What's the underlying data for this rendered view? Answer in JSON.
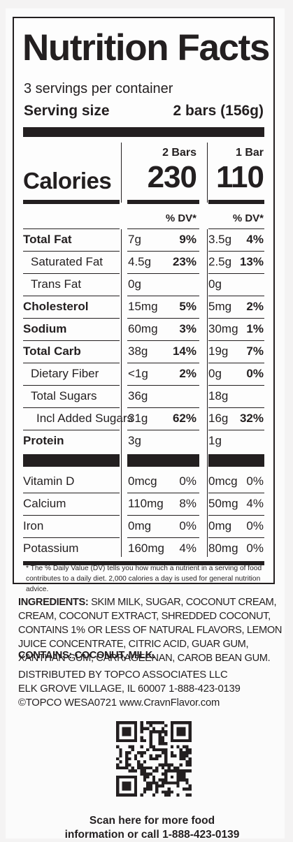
{
  "label": {
    "title": "Nutrition Facts",
    "servings_per_container": "3 servings per container",
    "serving_size_label": "Serving size",
    "serving_size_value": "2 bars (156g)",
    "columns": [
      {
        "header": "2 Bars",
        "calories": "230"
      },
      {
        "header": "1 Bar",
        "calories": "110"
      }
    ],
    "calories_label": "Calories",
    "dv_header": "% DV*",
    "nutrients": [
      {
        "name": "Total Fat",
        "bold": true,
        "indent": 0,
        "c1_amt": "7g",
        "c1_pct": "9%",
        "c2_amt": "3.5g",
        "c2_pct": "4%",
        "pct_bold": true
      },
      {
        "name": "Saturated Fat",
        "bold": false,
        "indent": 1,
        "c1_amt": "4.5g",
        "c1_pct": "23%",
        "c2_amt": "2.5g",
        "c2_pct": "13%",
        "pct_bold": true
      },
      {
        "name": "Trans Fat",
        "bold": false,
        "indent": 1,
        "c1_amt": "0g",
        "c1_pct": "",
        "c2_amt": "0g",
        "c2_pct": "",
        "pct_bold": true
      },
      {
        "name": "Cholesterol",
        "bold": true,
        "indent": 0,
        "c1_amt": "15mg",
        "c1_pct": "5%",
        "c2_amt": "5mg",
        "c2_pct": "2%",
        "pct_bold": true
      },
      {
        "name": "Sodium",
        "bold": true,
        "indent": 0,
        "c1_amt": "60mg",
        "c1_pct": "3%",
        "c2_amt": "30mg",
        "c2_pct": "1%",
        "pct_bold": true
      },
      {
        "name": "Total Carb",
        "bold": true,
        "indent": 0,
        "c1_amt": "38g",
        "c1_pct": "14%",
        "c2_amt": "19g",
        "c2_pct": "7%",
        "pct_bold": true
      },
      {
        "name": "Dietary Fiber",
        "bold": false,
        "indent": 1,
        "c1_amt": "<1g",
        "c1_pct": "2%",
        "c2_amt": "0g",
        "c2_pct": "0%",
        "pct_bold": true
      },
      {
        "name": "Total Sugars",
        "bold": false,
        "indent": 1,
        "c1_amt": "36g",
        "c1_pct": "",
        "c2_amt": "18g",
        "c2_pct": "",
        "pct_bold": true
      },
      {
        "name": "Incl Added Sugars",
        "bold": false,
        "indent": 2,
        "c1_amt": "31g",
        "c1_pct": "62%",
        "c2_amt": "16g",
        "c2_pct": "32%",
        "pct_bold": true
      },
      {
        "name": "Protein",
        "bold": true,
        "indent": 0,
        "c1_amt": "3g",
        "c1_pct": "",
        "c2_amt": "1g",
        "c2_pct": "",
        "pct_bold": true
      }
    ],
    "vitamins": [
      {
        "name": "Vitamin D",
        "c1_amt": "0mcg",
        "c1_pct": "0%",
        "c2_amt": "0mcg",
        "c2_pct": "0%"
      },
      {
        "name": "Calcium",
        "c1_amt": "110mg",
        "c1_pct": "8%",
        "c2_amt": "50mg",
        "c2_pct": "4%"
      },
      {
        "name": "Iron",
        "c1_amt": "0mg",
        "c1_pct": "0%",
        "c2_amt": "0mg",
        "c2_pct": "0%"
      },
      {
        "name": "Potassium",
        "c1_amt": "160mg",
        "c1_pct": "4%",
        "c2_amt": "80mg",
        "c2_pct": "0%"
      }
    ],
    "footnote": "* The % Daily Value (DV) tells you how much a nutrient in a serving of food contributes to a daily diet. 2,000 calories a day is used for general nutrition advice."
  },
  "ingredients": {
    "label": "INGREDIENTS:",
    "text": "SKIM MILK, SUGAR, COCONUT CREAM, CREAM, COCONUT EXTRACT, SHREDDED COCONUT, CONTAINS 1% OR LESS OF NATURAL FLAVORS, LEMON JUICE CONCENTRATE, CITRIC ACID, GUAR GUM, XANTHAN GUM, CARRAGEENAN, CAROB BEAN GUM."
  },
  "contains": {
    "label": "CONTAINS:",
    "text": "COCONUT, MILK."
  },
  "distribution": {
    "line1": "DISTRIBUTED BY TOPCO ASSOCIATES LLC",
    "line2": "ELK GROVE VILLAGE, IL 60007  1-888-423-0139",
    "line3": "©TOPCO  WESA0721  www.CravnFlavor.com"
  },
  "qr": {
    "caption_line1": "Scan here for more food",
    "caption_line2": "information or call 1-888-423-0139"
  }
}
